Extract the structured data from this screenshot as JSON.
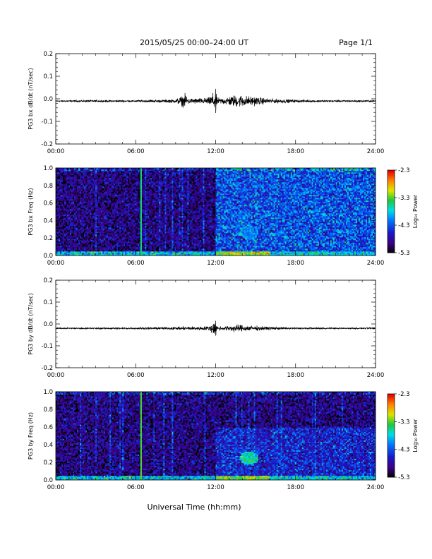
{
  "header": {
    "title": "2015/05/25  00:00–24:00 UT",
    "page": "Page 1/1"
  },
  "xlabel": "Universal Time (hh:mm)",
  "chart_data": [
    {
      "type": "line",
      "ylabel": "PG3 bx dB/dt (nT/sec)",
      "xlim": [
        0,
        24
      ],
      "ylim": [
        -0.2,
        0.2
      ],
      "xticks": [
        "00:00",
        "06:00",
        "12:00",
        "18:00",
        "24:00"
      ],
      "yticks": [
        "0.2",
        "0.1",
        "0.0",
        "-0.1",
        "-0.2"
      ],
      "series": [
        {
          "baseline": -0.01,
          "x": [
            0,
            3,
            6,
            8,
            9,
            9.8,
            10,
            10.5,
            11,
            11.5,
            11.9,
            12.0,
            12.1,
            12.5,
            13,
            13.5,
            14,
            14.5,
            15,
            16,
            17,
            18,
            20,
            22,
            24
          ],
          "amp": [
            0.003,
            0.004,
            0.004,
            0.006,
            0.008,
            0.03,
            0.01,
            0.012,
            0.012,
            0.015,
            0.04,
            0.055,
            0.015,
            0.012,
            0.02,
            0.025,
            0.025,
            0.02,
            0.018,
            0.01,
            0.008,
            0.006,
            0.004,
            0.004,
            0.004
          ]
        }
      ]
    },
    {
      "type": "heatmap",
      "ylabel": "PG3 bx Freq (Hz)",
      "xlim": [
        0,
        24
      ],
      "ylim": [
        0,
        1.0
      ],
      "xticks": [
        "00:00",
        "06:00",
        "12:00",
        "18:00",
        "24:00"
      ],
      "yticks": [
        "1.0",
        "0.8",
        "0.6",
        "0.4",
        "0.2",
        "0.0"
      ],
      "colorbar": {
        "label": "Log₁₀ Power",
        "ticks": [
          "-2.3",
          "-3.3",
          "-4.3",
          "-5.3"
        ],
        "range": [
          -5.3,
          -2.3
        ]
      },
      "features": [
        {
          "kind": "vertical_line",
          "t": 6.4,
          "level": -3.5
        },
        {
          "kind": "low_freq_band",
          "f_max": 0.05,
          "level": -3.8
        },
        {
          "kind": "enhanced_region",
          "t": [
            12.0,
            24.0
          ],
          "f": [
            0.0,
            1.0
          ],
          "level": -4.3
        },
        {
          "kind": "blob",
          "t": 14.5,
          "f": 0.27,
          "level": -4.1
        }
      ]
    },
    {
      "type": "line",
      "ylabel": "PG3 by dB/dt (nT/sec)",
      "xlim": [
        0,
        24
      ],
      "ylim": [
        -0.2,
        0.2
      ],
      "xticks": [
        "00:00",
        "06:00",
        "12:00",
        "18:00",
        "24:00"
      ],
      "yticks": [
        "0.2",
        "0.1",
        "0.0",
        "-0.1",
        "-0.2"
      ],
      "series": [
        {
          "baseline": -0.02,
          "x": [
            0,
            3,
            6,
            8,
            9,
            10,
            11,
            11.5,
            11.9,
            12.0,
            12.1,
            12.5,
            13,
            13.5,
            14,
            14.5,
            15,
            16,
            17,
            18,
            20,
            22,
            24
          ],
          "amp": [
            0.003,
            0.003,
            0.004,
            0.005,
            0.006,
            0.008,
            0.008,
            0.01,
            0.03,
            0.035,
            0.01,
            0.008,
            0.012,
            0.015,
            0.015,
            0.012,
            0.01,
            0.007,
            0.005,
            0.004,
            0.003,
            0.003,
            0.003
          ]
        }
      ]
    },
    {
      "type": "heatmap",
      "ylabel": "PG3 by Freq (Hz)",
      "xlim": [
        0,
        24
      ],
      "ylim": [
        0,
        1.0
      ],
      "xticks": [
        "00:00",
        "06:00",
        "12:00",
        "18:00",
        "24:00"
      ],
      "yticks": [
        "1.0",
        "0.8",
        "0.6",
        "0.4",
        "0.2",
        "0.0"
      ],
      "colorbar": {
        "label": "Log₁₀ Power",
        "ticks": [
          "-2.3",
          "-3.3",
          "-4.3",
          "-5.3"
        ],
        "range": [
          -5.3,
          -2.3
        ]
      },
      "features": [
        {
          "kind": "vertical_line",
          "t": 6.4,
          "level": -3.3
        },
        {
          "kind": "low_freq_band",
          "f_max": 0.05,
          "level": -3.8
        },
        {
          "kind": "enhanced_region",
          "t": [
            12.0,
            24.0
          ],
          "f": [
            0.0,
            0.6
          ],
          "level": -4.6
        },
        {
          "kind": "blob",
          "t": 14.5,
          "f": 0.25,
          "level": -3.6
        }
      ]
    }
  ]
}
